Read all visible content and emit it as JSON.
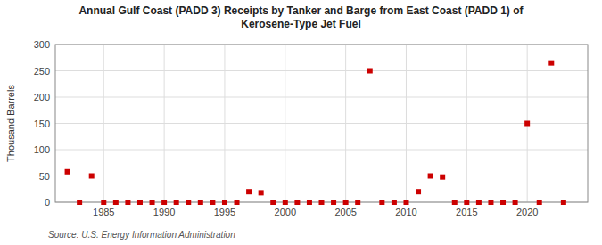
{
  "chart_data": {
    "type": "scatter",
    "title": "Annual Gulf Coast (PADD 3) Receipts by Tanker and Barge from East Coast (PADD 1) of\nKerosene-Type Jet Fuel",
    "ylabel": "Thousand Barrels",
    "annotations": [
      "Source: U.S. Energy Information Administration"
    ],
    "color": "#cc0000",
    "marker": "square",
    "grid": true,
    "xlim": [
      1981,
      2025
    ],
    "ylim": [
      0,
      300
    ],
    "xticks": [
      1985,
      1990,
      1995,
      2000,
      2005,
      2010,
      2015,
      2020
    ],
    "yticks": [
      0,
      50,
      100,
      150,
      200,
      250,
      300
    ],
    "x": [
      1982,
      1983,
      1984,
      1985,
      1986,
      1987,
      1988,
      1989,
      1990,
      1991,
      1992,
      1993,
      1994,
      1995,
      1996,
      1997,
      1998,
      1999,
      2000,
      2001,
      2002,
      2003,
      2004,
      2005,
      2006,
      2007,
      2008,
      2009,
      2010,
      2011,
      2012,
      2013,
      2014,
      2015,
      2016,
      2017,
      2018,
      2019,
      2020,
      2021,
      2022,
      2023
    ],
    "values": [
      58,
      0,
      50,
      0,
      0,
      0,
      0,
      0,
      0,
      0,
      0,
      0,
      0,
      0,
      0,
      20,
      18,
      0,
      0,
      0,
      0,
      0,
      0,
      0,
      0,
      250,
      0,
      0,
      0,
      20,
      50,
      48,
      0,
      0,
      0,
      0,
      0,
      0,
      150,
      0,
      265,
      0
    ]
  }
}
